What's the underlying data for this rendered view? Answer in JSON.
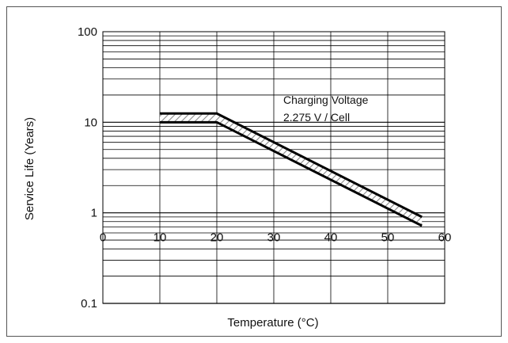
{
  "chart_data": {
    "type": "line",
    "title": "",
    "xlabel": "Temperature (°C)",
    "ylabel": "Service Life (Years)",
    "x_scale": "linear",
    "y_scale": "log",
    "xlim": [
      0,
      60
    ],
    "ylim": [
      0.1,
      100
    ],
    "x_ticks": [
      "0",
      "10",
      "20",
      "30",
      "40",
      "50",
      "60"
    ],
    "y_ticks": [
      "100",
      "10",
      "1",
      "0.1"
    ],
    "grid": true,
    "annotation": {
      "line1": "Charging Voltage",
      "line2": "2.275 V / Cell"
    },
    "series": [
      {
        "x": [
          10,
          20,
          56
        ],
        "y": [
          12.5,
          12.5,
          0.9
        ]
      },
      {
        "x": [
          10,
          20,
          56
        ],
        "y": [
          10,
          10,
          0.72
        ]
      }
    ],
    "band": "hatched area between upper and lower life curves",
    "colors": {
      "line": "#000000",
      "grid": "#000000",
      "hatch": "#888888"
    }
  }
}
